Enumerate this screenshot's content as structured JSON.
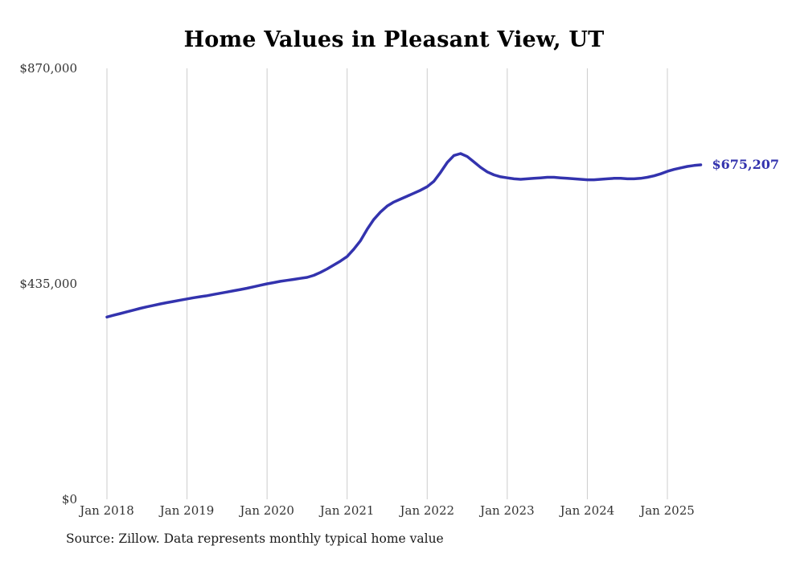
{
  "title": "Home Values in Pleasant View, UT",
  "source_note": "Source: Zillow. Data represents monthly typical home value",
  "end_label": "$675,207",
  "colors": {
    "line": "#3333ae",
    "grid": "#cccccc",
    "text": "#333333"
  },
  "chart_data": {
    "type": "line",
    "title": "Home Values in Pleasant View, UT",
    "series_name": "Monthly typical home value",
    "ylim": [
      0,
      870000
    ],
    "grid": "vertical-only",
    "legend": "none",
    "y_ticks": [
      {
        "value": 0,
        "label": "$0"
      },
      {
        "value": 435000,
        "label": "$435,000"
      },
      {
        "value": 870000,
        "label": "$870,000"
      }
    ],
    "x_ticks": [
      "Jan 2018",
      "Jan 2019",
      "Jan 2020",
      "Jan 2021",
      "Jan 2022",
      "Jan 2023",
      "Jan 2024",
      "Jan 2025"
    ],
    "x": [
      "2018-01",
      "2018-02",
      "2018-03",
      "2018-04",
      "2018-05",
      "2018-06",
      "2018-07",
      "2018-08",
      "2018-09",
      "2018-10",
      "2018-11",
      "2018-12",
      "2019-01",
      "2019-02",
      "2019-03",
      "2019-04",
      "2019-05",
      "2019-06",
      "2019-07",
      "2019-08",
      "2019-09",
      "2019-10",
      "2019-11",
      "2019-12",
      "2020-01",
      "2020-02",
      "2020-03",
      "2020-04",
      "2020-05",
      "2020-06",
      "2020-07",
      "2020-08",
      "2020-09",
      "2020-10",
      "2020-11",
      "2020-12",
      "2021-01",
      "2021-02",
      "2021-03",
      "2021-04",
      "2021-05",
      "2021-06",
      "2021-07",
      "2021-08",
      "2021-09",
      "2021-10",
      "2021-11",
      "2021-12",
      "2022-01",
      "2022-02",
      "2022-03",
      "2022-04",
      "2022-05",
      "2022-06",
      "2022-07",
      "2022-08",
      "2022-09",
      "2022-10",
      "2022-11",
      "2022-12",
      "2023-01",
      "2023-02",
      "2023-03",
      "2023-04",
      "2023-05",
      "2023-06",
      "2023-07",
      "2023-08",
      "2023-09",
      "2023-10",
      "2023-11",
      "2023-12",
      "2024-01",
      "2024-02",
      "2024-03",
      "2024-04",
      "2024-05",
      "2024-06",
      "2024-07",
      "2024-08",
      "2024-09",
      "2024-10",
      "2024-11",
      "2024-12",
      "2025-01",
      "2025-02",
      "2025-03",
      "2025-04",
      "2025-05",
      "2025-06"
    ],
    "values": [
      368000,
      371500,
      375000,
      378500,
      382000,
      385500,
      388500,
      391500,
      394500,
      397000,
      399500,
      402000,
      404500,
      407000,
      409000,
      411000,
      413500,
      416000,
      418500,
      421000,
      423500,
      426000,
      429000,
      432000,
      435000,
      437500,
      440000,
      442000,
      444000,
      446000,
      448000,
      452000,
      458000,
      465000,
      473000,
      481000,
      490000,
      505000,
      522000,
      545000,
      565000,
      580000,
      592000,
      600000,
      606000,
      612000,
      618000,
      624000,
      631000,
      642000,
      660000,
      680000,
      694000,
      698000,
      692000,
      681000,
      670000,
      661000,
      655000,
      651000,
      649000,
      647000,
      646000,
      647000,
      648000,
      649000,
      650000,
      650000,
      649000,
      648000,
      647000,
      646000,
      645000,
      645000,
      646000,
      647000,
      648000,
      648000,
      647000,
      647000,
      648000,
      650000,
      653000,
      657000,
      662000,
      666000,
      669000,
      672000,
      674000,
      675207
    ],
    "end_annotation": {
      "text": "$675,207",
      "position": "right-of-last-point"
    }
  }
}
